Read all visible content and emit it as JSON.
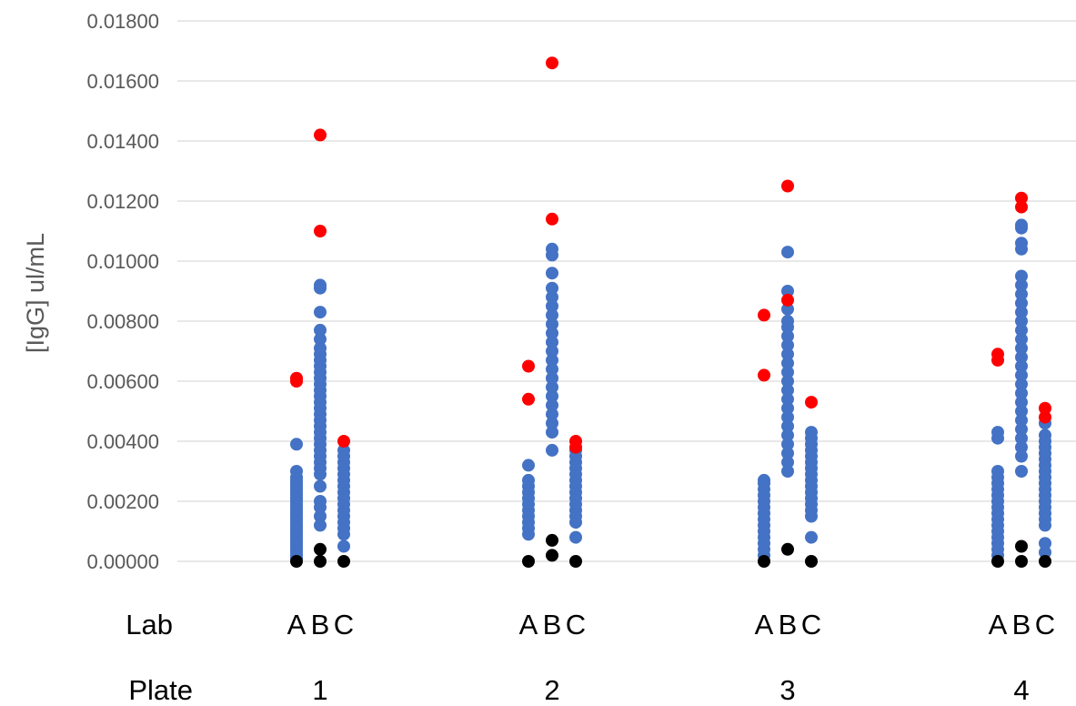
{
  "chart_data": {
    "type": "scatter",
    "ylabel": "[IgG] ul/mL",
    "ylim": [
      0,
      0.018
    ],
    "yticks": [
      "0.00000",
      "0.00200",
      "0.00400",
      "0.00600",
      "0.00800",
      "0.01000",
      "0.01200",
      "0.01400",
      "0.01600",
      "0.01800"
    ],
    "grid": true,
    "row_labels": {
      "lab": "Lab",
      "plate": "Plate"
    },
    "plates": [
      "1",
      "2",
      "3",
      "4"
    ],
    "labs": [
      "A",
      "B",
      "C"
    ],
    "colors": {
      "blue": "#4472C4",
      "red": "#FF0000",
      "black": "#000000",
      "grid": "#D9D9D9"
    },
    "groups": [
      {
        "plate": "1",
        "lab": "A",
        "blue": [
          0.0001,
          0.0002,
          0.0003,
          0.0004,
          0.0005,
          0.0006,
          0.0007,
          0.0008,
          0.0009,
          0.001,
          0.0011,
          0.0012,
          0.0013,
          0.0014,
          0.0015,
          0.0016,
          0.0017,
          0.0018,
          0.0019,
          0.002,
          0.0021,
          0.0022,
          0.0023,
          0.0024,
          0.0025,
          0.0026,
          0.0027,
          0.0028,
          0.003,
          0.0039
        ],
        "red": [
          0.0061,
          0.006
        ],
        "black": [
          0.0
        ]
      },
      {
        "plate": "1",
        "lab": "B",
        "blue": [
          0.0012,
          0.0015,
          0.0018,
          0.002,
          0.0025,
          0.0029,
          0.0031,
          0.0033,
          0.0035,
          0.0037,
          0.0039,
          0.0041,
          0.0043,
          0.0045,
          0.0047,
          0.0049,
          0.0051,
          0.0053,
          0.0055,
          0.0057,
          0.0059,
          0.0061,
          0.0063,
          0.0065,
          0.0067,
          0.0069,
          0.0071,
          0.0074,
          0.0077,
          0.0083,
          0.0091,
          0.0092
        ],
        "red": [
          0.0142,
          0.011
        ],
        "black": [
          0.0,
          0.0004
        ]
      },
      {
        "plate": "1",
        "lab": "C",
        "blue": [
          0.0005,
          0.0009,
          0.0011,
          0.0013,
          0.0015,
          0.0017,
          0.0019,
          0.0021,
          0.0023,
          0.0025,
          0.0027,
          0.0029,
          0.0031,
          0.0033,
          0.0035,
          0.0037
        ],
        "red": [
          0.004
        ],
        "black": [
          0.0
        ]
      },
      {
        "plate": "2",
        "lab": "A",
        "blue": [
          0.0009,
          0.0011,
          0.0013,
          0.0015,
          0.0017,
          0.0019,
          0.0021,
          0.0023,
          0.0025,
          0.0027,
          0.0032
        ],
        "red": [
          0.0065,
          0.0054
        ],
        "black": [
          0.0
        ]
      },
      {
        "plate": "2",
        "lab": "B",
        "blue": [
          0.0037,
          0.0043,
          0.0046,
          0.0049,
          0.0052,
          0.0055,
          0.0058,
          0.0061,
          0.0064,
          0.0067,
          0.007,
          0.0073,
          0.0076,
          0.0079,
          0.0082,
          0.0085,
          0.0088,
          0.0091,
          0.0096,
          0.0102,
          0.0104
        ],
        "red": [
          0.0166,
          0.0114
        ],
        "black": [
          0.0002,
          0.0007
        ]
      },
      {
        "plate": "2",
        "lab": "C",
        "blue": [
          0.0008,
          0.0013,
          0.0015,
          0.0017,
          0.0019,
          0.0021,
          0.0023,
          0.0025,
          0.0027,
          0.0029,
          0.0031,
          0.0033,
          0.0035,
          0.0037
        ],
        "red": [
          0.004,
          0.0038
        ],
        "black": [
          0.0
        ]
      },
      {
        "plate": "3",
        "lab": "A",
        "blue": [
          0.0002,
          0.0004,
          0.0006,
          0.0008,
          0.001,
          0.0012,
          0.0014,
          0.0016,
          0.0018,
          0.002,
          0.0022,
          0.0024,
          0.0026,
          0.0027
        ],
        "red": [
          0.0082,
          0.0062
        ],
        "black": [
          0.0
        ]
      },
      {
        "plate": "3",
        "lab": "B",
        "blue": [
          0.003,
          0.0033,
          0.0036,
          0.0039,
          0.0042,
          0.0045,
          0.0048,
          0.0051,
          0.0054,
          0.0057,
          0.006,
          0.0063,
          0.0066,
          0.0069,
          0.0072,
          0.0075,
          0.0078,
          0.008,
          0.0084,
          0.009,
          0.0103
        ],
        "red": [
          0.0125,
          0.0087
        ],
        "black": [
          0.0004
        ]
      },
      {
        "plate": "3",
        "lab": "C",
        "blue": [
          0.0008,
          0.0015,
          0.0017,
          0.0019,
          0.0021,
          0.0023,
          0.0025,
          0.0027,
          0.0029,
          0.0031,
          0.0033,
          0.0035,
          0.0037,
          0.0039,
          0.0041,
          0.0043
        ],
        "red": [
          0.0053
        ],
        "black": [
          0.0
        ]
      },
      {
        "plate": "4",
        "lab": "A",
        "blue": [
          0.0002,
          0.0004,
          0.0006,
          0.0008,
          0.001,
          0.0012,
          0.0014,
          0.0016,
          0.0018,
          0.002,
          0.0022,
          0.0024,
          0.0026,
          0.0028,
          0.003,
          0.0041,
          0.0043
        ],
        "red": [
          0.0069,
          0.0067
        ],
        "black": [
          0.0
        ]
      },
      {
        "plate": "4",
        "lab": "B",
        "blue": [
          0.003,
          0.0035,
          0.0038,
          0.0041,
          0.0044,
          0.0047,
          0.005,
          0.0053,
          0.0056,
          0.0059,
          0.0062,
          0.0065,
          0.0068,
          0.0071,
          0.0074,
          0.0077,
          0.008,
          0.0083,
          0.0086,
          0.0089,
          0.0092,
          0.0095,
          0.0104,
          0.0106,
          0.0111,
          0.0112
        ],
        "red": [
          0.0121,
          0.0118
        ],
        "black": [
          0.0,
          0.0005
        ]
      },
      {
        "plate": "4",
        "lab": "C",
        "blue": [
          0.0003,
          0.0006,
          0.0012,
          0.0014,
          0.0016,
          0.0018,
          0.002,
          0.0022,
          0.0024,
          0.0026,
          0.0028,
          0.003,
          0.0032,
          0.0034,
          0.0036,
          0.0038,
          0.004,
          0.0042,
          0.0046
        ],
        "red": [
          0.0051,
          0.0048
        ],
        "black": [
          0.0
        ]
      }
    ]
  }
}
